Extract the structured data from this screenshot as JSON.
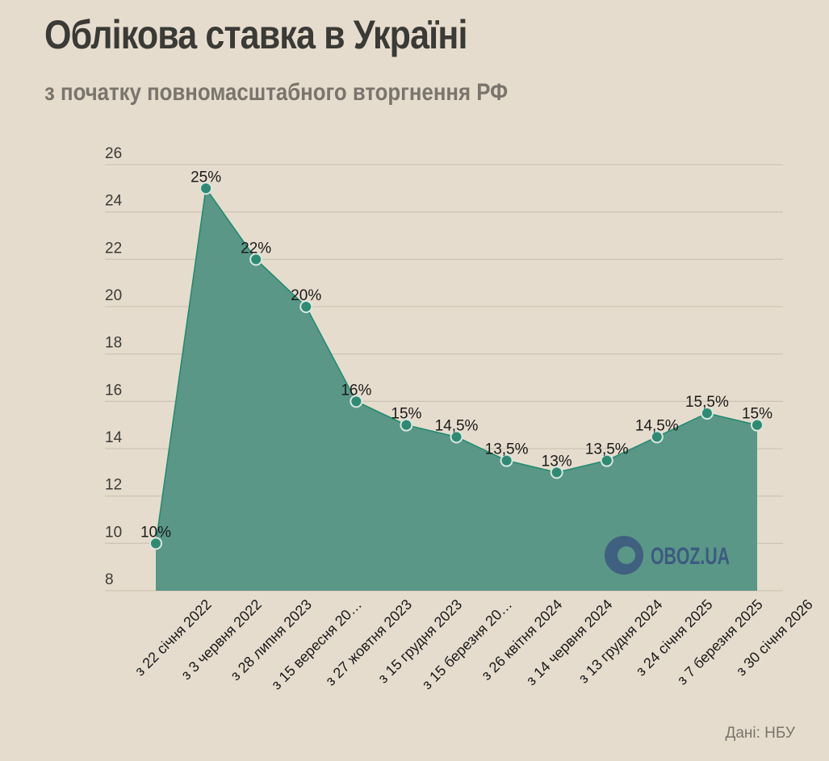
{
  "title": "Облікова ставка в Україні",
  "subtitle": "з початку повномасштабного вторгнення РФ",
  "source": "Дані: НБУ",
  "watermark": "OBOZ.UA",
  "colors": {
    "background": "#e6dccd",
    "area": "#5a9787",
    "line": "#1f8a70",
    "point": "#2e8a72",
    "watermark": "#3d5a80"
  },
  "chart_data": {
    "type": "area",
    "categories": [
      "з 22 січня 2022",
      "з 3 червня 2022",
      "з 28 липня 2023",
      "з 15 вересня 20…",
      "з 27 жовтня 2023",
      "з 15 грудня 2023",
      "з 15 березня 20…",
      "з 26 квітня 2024",
      "з 14 червня 2024",
      "з 13 грудня 2024",
      "з 24 січня 2025",
      "з 7 березня 2025",
      "з 30 січня 2026"
    ],
    "values": [
      10,
      25,
      22,
      20,
      16,
      15,
      14.5,
      13.5,
      13,
      13.5,
      14.5,
      15.5,
      15
    ],
    "data_labels": [
      "10%",
      "25%",
      "22%",
      "20%",
      "16%",
      "15%",
      "14,5%",
      "13,5%",
      "13%",
      "13,5%",
      "14,5%",
      "15,5%",
      "15%"
    ],
    "ylim": [
      8,
      26
    ],
    "yticks": [
      8,
      10,
      12,
      14,
      16,
      18,
      20,
      22,
      24,
      26
    ],
    "grid": true,
    "legend": "none"
  }
}
